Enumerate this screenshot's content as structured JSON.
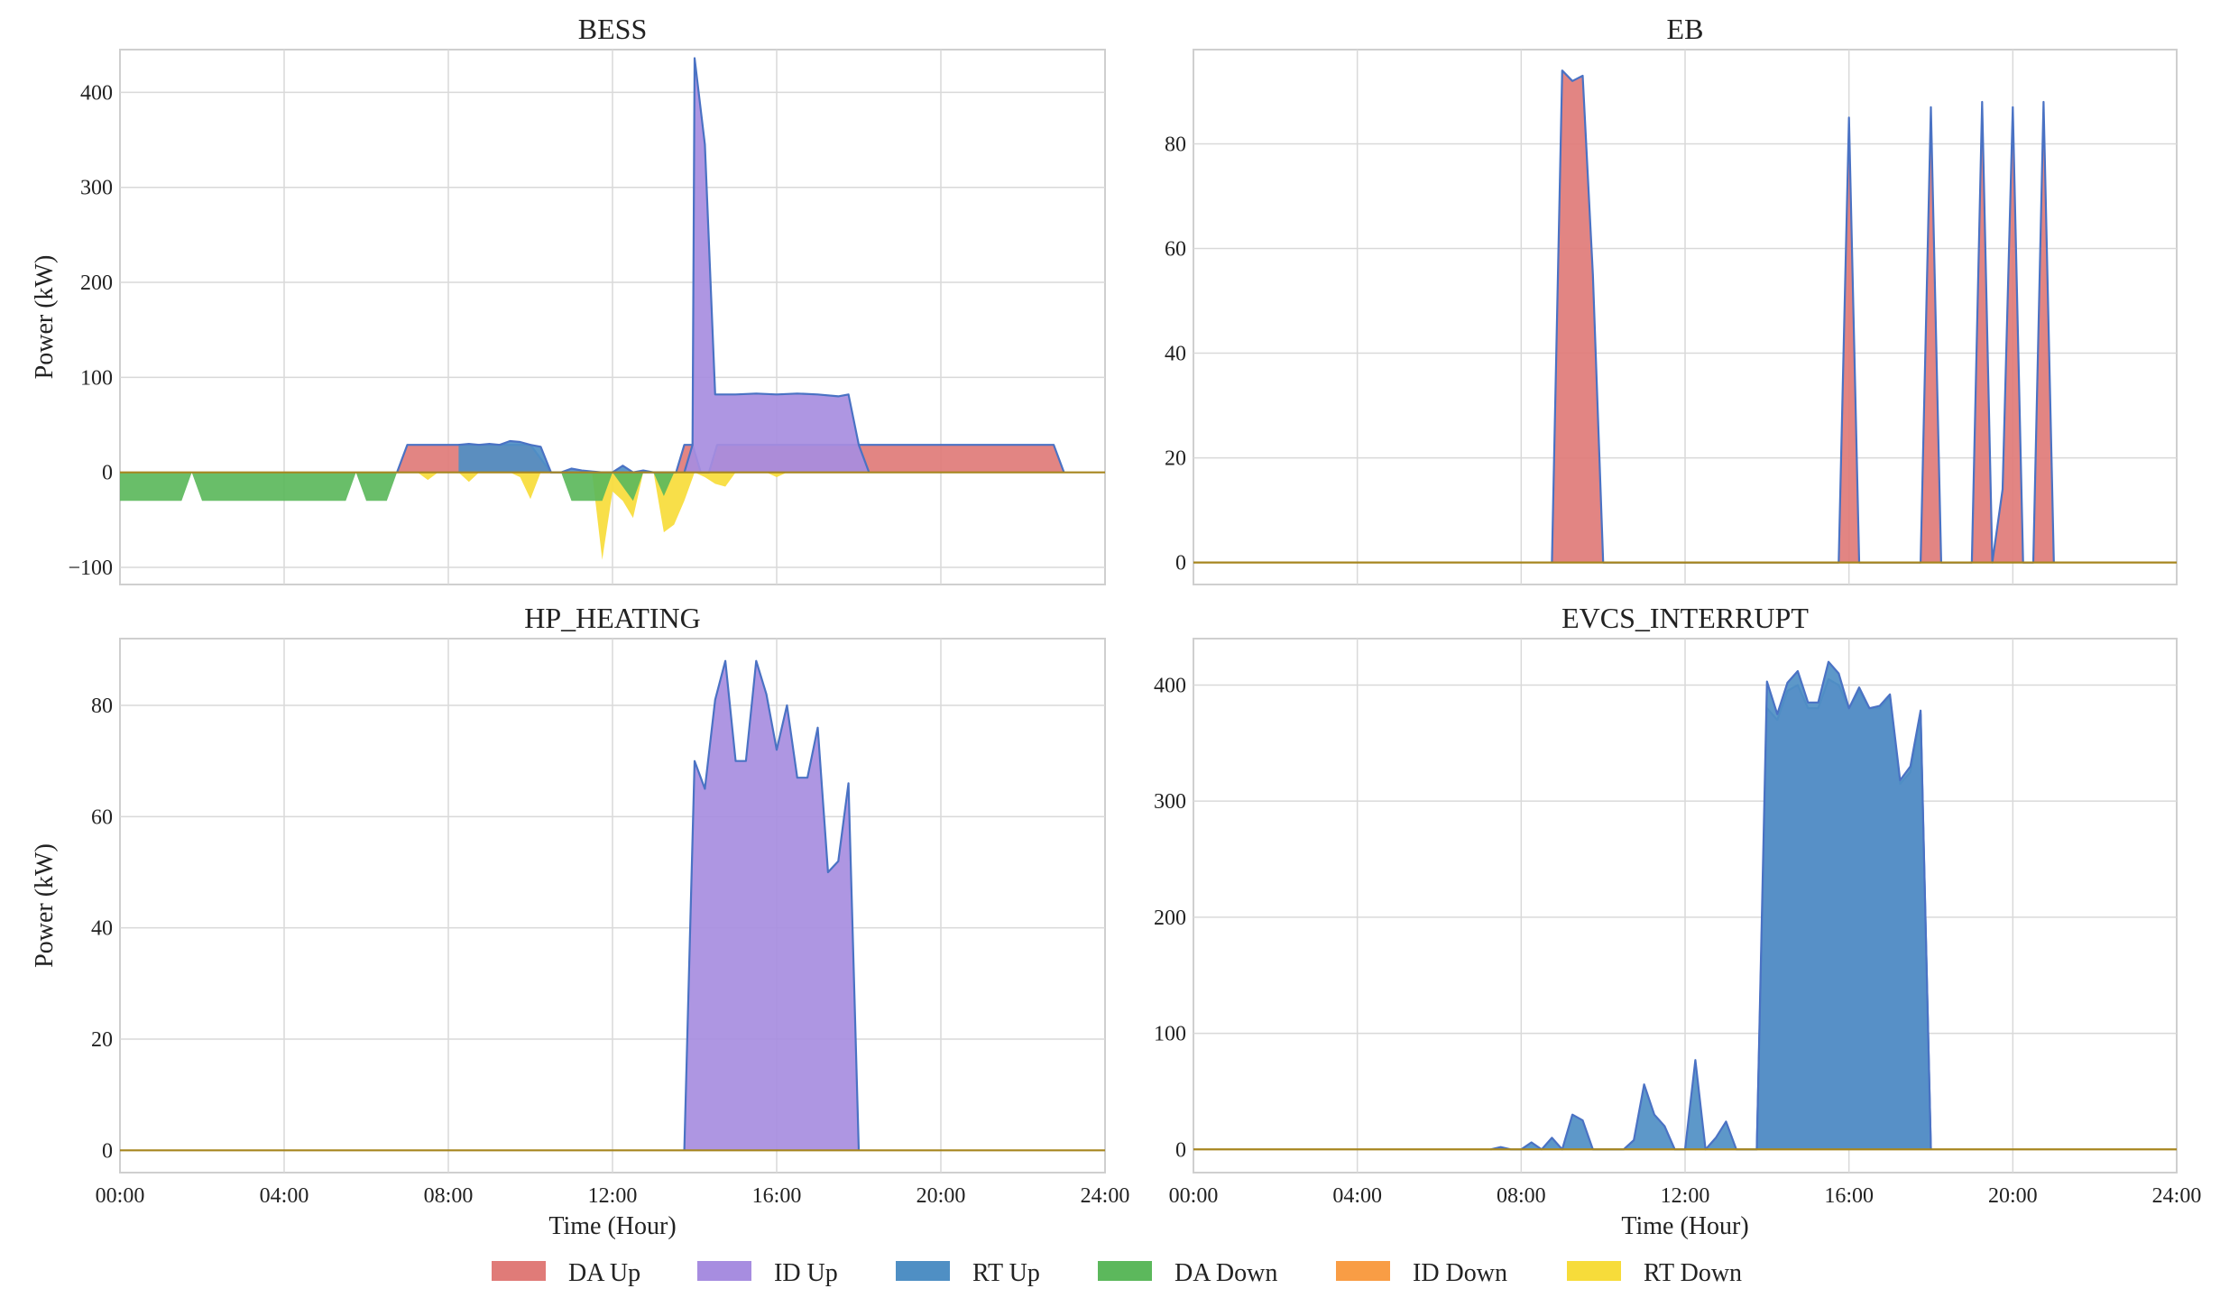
{
  "colors": {
    "da_up": "#e07b78",
    "id_up": "#a78de0",
    "rt_up": "#4f8fc4",
    "da_down": "#5cb85c",
    "id_down": "#f99d45",
    "rt_down": "#f7dc3a",
    "line": "#4a72c4",
    "baseline": "#a7861f",
    "grid": "#d9d9d9",
    "frame": "#cfcfcf"
  },
  "legend": [
    {
      "key": "da_up",
      "label": "DA Up"
    },
    {
      "key": "id_up",
      "label": "ID Up"
    },
    {
      "key": "rt_up",
      "label": "RT Up"
    },
    {
      "key": "da_down",
      "label": "DA Down"
    },
    {
      "key": "id_down",
      "label": "ID Down"
    },
    {
      "key": "rt_down",
      "label": "RT Down"
    }
  ],
  "chart_data": [
    {
      "type": "area",
      "title": "BESS",
      "ylabel": "Power (kW)",
      "xlabel": "",
      "xlim": [
        0,
        24
      ],
      "ylim": [
        -118,
        445
      ],
      "yticks": [
        -100,
        0,
        100,
        200,
        300,
        400
      ],
      "ytick_labels": [
        "−100",
        "0",
        "100",
        "200",
        "300",
        "400"
      ],
      "xticks": [
        0,
        4,
        8,
        12,
        16,
        20,
        24
      ],
      "xtick_labels": [],
      "grid": true,
      "series": [
        {
          "key": "da_up",
          "name": "DA Up",
          "points": [
            [
              6.75,
              0
            ],
            [
              7.0,
              29
            ],
            [
              10.0,
              29
            ],
            [
              10.5,
              0
            ],
            [
              13.55,
              0
            ],
            [
              13.75,
              29
            ],
            [
              13.95,
              29
            ],
            [
              14.15,
              0
            ],
            [
              14.35,
              0
            ],
            [
              14.55,
              29
            ],
            [
              22.75,
              29
            ],
            [
              23.0,
              0
            ]
          ]
        },
        {
          "key": "id_up",
          "name": "ID Up",
          "points": [
            [
              13.75,
              0
            ],
            [
              13.95,
              29
            ],
            [
              14.0,
              436
            ],
            [
              14.25,
              345
            ],
            [
              14.5,
              82
            ],
            [
              15.0,
              82
            ],
            [
              15.5,
              83
            ],
            [
              16.0,
              82
            ],
            [
              16.5,
              83
            ],
            [
              17.0,
              82
            ],
            [
              17.5,
              80
            ],
            [
              17.75,
              82
            ],
            [
              18.0,
              29
            ],
            [
              18.25,
              0
            ]
          ]
        },
        {
          "key": "rt_up",
          "name": "RT Up",
          "points": [
            [
              8.25,
              29
            ],
            [
              8.5,
              30
            ],
            [
              8.75,
              29
            ],
            [
              9.0,
              30
            ],
            [
              9.25,
              29
            ],
            [
              9.5,
              33
            ],
            [
              9.75,
              32
            ],
            [
              10.0,
              29
            ],
            [
              10.25,
              27
            ],
            [
              10.5,
              0
            ],
            [
              10.75,
              0
            ],
            [
              11.0,
              4
            ],
            [
              11.25,
              2
            ],
            [
              11.5,
              1
            ],
            [
              11.75,
              0
            ],
            [
              12.0,
              0
            ],
            [
              12.25,
              7
            ],
            [
              12.5,
              0
            ],
            [
              12.75,
              2
            ],
            [
              13.0,
              0
            ],
            [
              13.25,
              0
            ],
            [
              13.5,
              0
            ]
          ]
        },
        {
          "key": "da_down",
          "name": "DA Down",
          "points": [
            [
              0,
              0
            ],
            [
              0,
              -30
            ],
            [
              1.5,
              -30
            ],
            [
              1.75,
              0
            ],
            [
              2.0,
              -30
            ],
            [
              5.5,
              -30
            ],
            [
              5.75,
              0
            ],
            [
              6.0,
              -30
            ],
            [
              6.5,
              -30
            ],
            [
              6.75,
              0
            ],
            [
              10.75,
              0
            ],
            [
              11.0,
              -30
            ],
            [
              11.75,
              -30
            ],
            [
              12.0,
              0
            ],
            [
              12.5,
              -30
            ],
            [
              12.75,
              0
            ],
            [
              13.0,
              0
            ],
            [
              13.25,
              -25
            ],
            [
              13.5,
              0
            ]
          ]
        },
        {
          "key": "id_down",
          "name": "ID Down",
          "points": []
        },
        {
          "key": "rt_down",
          "name": "RT Down",
          "points": [
            [
              7.25,
              0
            ],
            [
              7.5,
              -8
            ],
            [
              7.75,
              0
            ],
            [
              8.25,
              0
            ],
            [
              8.5,
              -10
            ],
            [
              8.75,
              0
            ],
            [
              9.5,
              0
            ],
            [
              9.75,
              -5
            ],
            [
              10.0,
              -28
            ],
            [
              10.25,
              0
            ],
            [
              11.5,
              0
            ],
            [
              11.75,
              -92
            ],
            [
              12.0,
              -20
            ],
            [
              12.25,
              -30
            ],
            [
              12.5,
              -48
            ],
            [
              12.75,
              0
            ],
            [
              13.0,
              0
            ],
            [
              13.25,
              -63
            ],
            [
              13.5,
              -55
            ],
            [
              13.75,
              -30
            ],
            [
              14.0,
              0
            ],
            [
              14.25,
              -5
            ],
            [
              14.5,
              -12
            ],
            [
              14.75,
              -15
            ],
            [
              15.0,
              0
            ],
            [
              15.75,
              0
            ],
            [
              16.0,
              -5
            ],
            [
              16.25,
              0
            ]
          ]
        }
      ]
    },
    {
      "type": "area",
      "title": "EB",
      "ylabel": "",
      "xlabel": "",
      "xlim": [
        0,
        24
      ],
      "ylim": [
        -4.2,
        98
      ],
      "yticks": [
        0,
        20,
        40,
        60,
        80
      ],
      "ytick_labels": [
        "0",
        "20",
        "40",
        "60",
        "80"
      ],
      "xticks": [
        0,
        4,
        8,
        12,
        16,
        20,
        24
      ],
      "xtick_labels": [],
      "grid": true,
      "series": [
        {
          "key": "da_up",
          "name": "DA Up",
          "points": [
            [
              8.75,
              0
            ],
            [
              9.0,
              94
            ],
            [
              9.25,
              92
            ],
            [
              9.5,
              93
            ],
            [
              9.75,
              55
            ],
            [
              10.0,
              0
            ],
            [
              15.75,
              0
            ],
            [
              16.0,
              85
            ],
            [
              16.25,
              0
            ],
            [
              17.75,
              0
            ],
            [
              18.0,
              87
            ],
            [
              18.25,
              0
            ],
            [
              19.0,
              0
            ],
            [
              19.25,
              88
            ],
            [
              19.5,
              0
            ],
            [
              19.75,
              14
            ],
            [
              20.0,
              87
            ],
            [
              20.25,
              0
            ],
            [
              20.5,
              0
            ],
            [
              20.75,
              88
            ],
            [
              21.0,
              0
            ]
          ]
        },
        {
          "key": "id_up",
          "name": "ID Up",
          "points": []
        },
        {
          "key": "rt_up",
          "name": "RT Up",
          "points": []
        },
        {
          "key": "da_down",
          "name": "DA Down",
          "points": []
        },
        {
          "key": "id_down",
          "name": "ID Down",
          "points": []
        },
        {
          "key": "rt_down",
          "name": "RT Down",
          "points": []
        }
      ]
    },
    {
      "type": "area",
      "title": "HP_HEATING",
      "ylabel": "Power (kW)",
      "xlabel": "Time (Hour)",
      "xlim": [
        0,
        24
      ],
      "ylim": [
        -4,
        92
      ],
      "yticks": [
        0,
        20,
        40,
        60,
        80
      ],
      "ytick_labels": [
        "0",
        "20",
        "40",
        "60",
        "80"
      ],
      "xticks": [
        0,
        4,
        8,
        12,
        16,
        20,
        24
      ],
      "xtick_labels": [
        "00:00",
        "04:00",
        "08:00",
        "12:00",
        "16:00",
        "20:00",
        "24:00"
      ],
      "grid": true,
      "series": [
        {
          "key": "da_up",
          "name": "DA Up",
          "points": []
        },
        {
          "key": "id_up",
          "name": "ID Up",
          "points": [
            [
              13.75,
              0
            ],
            [
              14.0,
              70
            ],
            [
              14.25,
              65
            ],
            [
              14.5,
              81
            ],
            [
              14.75,
              88
            ],
            [
              15.0,
              70
            ],
            [
              15.25,
              70
            ],
            [
              15.5,
              88
            ],
            [
              15.75,
              82
            ],
            [
              16.0,
              72
            ],
            [
              16.25,
              80
            ],
            [
              16.5,
              67
            ],
            [
              16.75,
              67
            ],
            [
              17.0,
              76
            ],
            [
              17.25,
              50
            ],
            [
              17.5,
              52
            ],
            [
              17.75,
              66
            ],
            [
              18.0,
              0
            ]
          ]
        },
        {
          "key": "rt_up",
          "name": "RT Up",
          "points": []
        },
        {
          "key": "da_down",
          "name": "DA Down",
          "points": []
        },
        {
          "key": "id_down",
          "name": "ID Down",
          "points": []
        },
        {
          "key": "rt_down",
          "name": "RT Down",
          "points": []
        }
      ]
    },
    {
      "type": "area",
      "title": "EVCS_INTERRUPT",
      "ylabel": "",
      "xlabel": "Time (Hour)",
      "xlim": [
        0,
        24
      ],
      "ylim": [
        -20,
        440
      ],
      "yticks": [
        0,
        100,
        200,
        300,
        400
      ],
      "ytick_labels": [
        "0",
        "100",
        "200",
        "300",
        "400"
      ],
      "xticks": [
        0,
        4,
        8,
        12,
        16,
        20,
        24
      ],
      "xtick_labels": [
        "00:00",
        "04:00",
        "08:00",
        "12:00",
        "16:00",
        "20:00",
        "24:00"
      ],
      "grid": true,
      "series": [
        {
          "key": "da_up",
          "name": "DA Up",
          "points": []
        },
        {
          "key": "id_up",
          "name": "ID Up",
          "points": [
            [
              13.75,
              0
            ],
            [
              14.0,
              380
            ],
            [
              14.25,
              370
            ],
            [
              14.5,
              395
            ],
            [
              14.75,
              400
            ],
            [
              15.0,
              380
            ],
            [
              15.25,
              380
            ],
            [
              15.5,
              405
            ],
            [
              15.75,
              400
            ],
            [
              16.0,
              380
            ],
            [
              16.25,
              395
            ],
            [
              16.5,
              380
            ],
            [
              16.75,
              380
            ],
            [
              17.0,
              390
            ],
            [
              17.25,
              315
            ],
            [
              17.5,
              325
            ],
            [
              17.75,
              375
            ],
            [
              18.0,
              0
            ]
          ]
        },
        {
          "key": "rt_up",
          "name": "RT Up",
          "points": [
            [
              7.25,
              0
            ],
            [
              7.5,
              2
            ],
            [
              7.75,
              0
            ],
            [
              8.0,
              0
            ],
            [
              8.25,
              6
            ],
            [
              8.5,
              0
            ],
            [
              8.75,
              10
            ],
            [
              9.0,
              0
            ],
            [
              9.25,
              30
            ],
            [
              9.5,
              25
            ],
            [
              9.75,
              0
            ],
            [
              10.5,
              0
            ],
            [
              10.75,
              8
            ],
            [
              11.0,
              56
            ],
            [
              11.25,
              30
            ],
            [
              11.5,
              20
            ],
            [
              11.75,
              0
            ],
            [
              12.0,
              0
            ],
            [
              12.25,
              77
            ],
            [
              12.5,
              0
            ],
            [
              12.75,
              10
            ],
            [
              13.0,
              24
            ],
            [
              13.25,
              0
            ],
            [
              13.75,
              0
            ],
            [
              14.0,
              403
            ],
            [
              14.25,
              375
            ],
            [
              14.5,
              402
            ],
            [
              14.75,
              412
            ],
            [
              15.0,
              385
            ],
            [
              15.25,
              385
            ],
            [
              15.5,
              420
            ],
            [
              15.75,
              410
            ],
            [
              16.0,
              380
            ],
            [
              16.25,
              398
            ],
            [
              16.5,
              380
            ],
            [
              16.75,
              382
            ],
            [
              17.0,
              392
            ],
            [
              17.25,
              318
            ],
            [
              17.5,
              330
            ],
            [
              17.75,
              378
            ],
            [
              18.0,
              0
            ]
          ]
        },
        {
          "key": "da_down",
          "name": "DA Down",
          "points": []
        },
        {
          "key": "id_down",
          "name": "ID Down",
          "points": []
        },
        {
          "key": "rt_down",
          "name": "RT Down",
          "points": []
        }
      ]
    }
  ]
}
